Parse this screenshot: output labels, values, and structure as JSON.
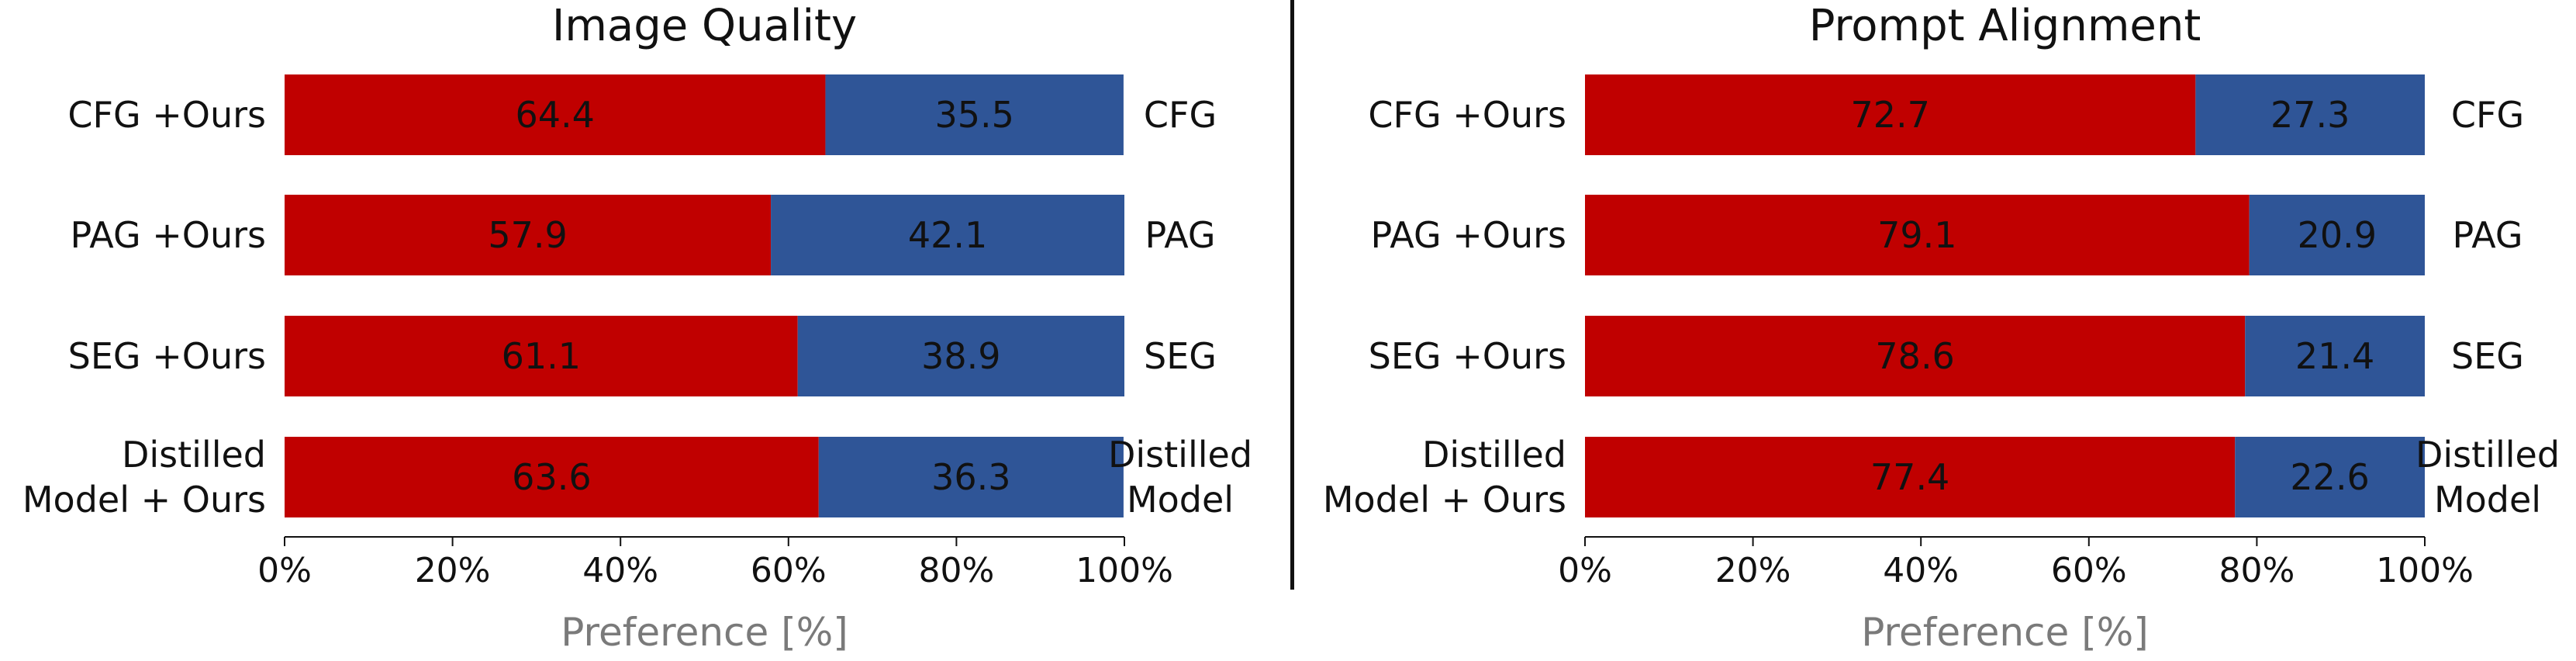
{
  "colors": {
    "ours": "#c00000",
    "baseline": "#2f5597",
    "divider": "#111111",
    "axis_title": "#7a7a7a"
  },
  "chart_data": [
    {
      "type": "bar",
      "orientation": "horizontal",
      "stacked": true,
      "title": "Image Quality",
      "xlabel": "Preference [%]",
      "xlim": [
        0,
        100
      ],
      "xticks": [
        "0%",
        "20%",
        "40%",
        "60%",
        "80%",
        "100%"
      ],
      "categories_left": [
        "CFG +Ours",
        "PAG +Ours",
        "SEG +Ours",
        "Distilled\nModel + Ours"
      ],
      "categories_right": [
        "CFG",
        "PAG",
        "SEG",
        "Distilled\nModel"
      ],
      "series": [
        {
          "values": [
            64.4,
            57.9,
            61.1,
            63.6
          ],
          "labels": [
            "64.4",
            "57.9",
            "61.1",
            "63.6"
          ],
          "color": "#c00000"
        },
        {
          "values": [
            35.5,
            42.1,
            38.9,
            36.3
          ],
          "labels": [
            "35.5",
            "42.1",
            "38.9",
            "36.3"
          ],
          "color": "#2f5597"
        }
      ]
    },
    {
      "type": "bar",
      "orientation": "horizontal",
      "stacked": true,
      "title": "Prompt Alignment",
      "xlabel": "Preference [%]",
      "xlim": [
        0,
        100
      ],
      "xticks": [
        "0%",
        "20%",
        "40%",
        "60%",
        "80%",
        "100%"
      ],
      "categories_left": [
        "CFG +Ours",
        "PAG +Ours",
        "SEG +Ours",
        "Distilled\nModel + Ours"
      ],
      "categories_right": [
        "CFG",
        "PAG",
        "SEG",
        "Distilled\nModel"
      ],
      "series": [
        {
          "values": [
            72.7,
            79.1,
            78.6,
            77.4
          ],
          "labels": [
            "72.7",
            "79.1",
            "78.6",
            "77.4"
          ],
          "color": "#c00000"
        },
        {
          "values": [
            27.3,
            20.9,
            21.4,
            22.6
          ],
          "labels": [
            "27.3",
            "20.9",
            "21.4",
            "22.6"
          ],
          "color": "#2f5597"
        }
      ]
    }
  ]
}
